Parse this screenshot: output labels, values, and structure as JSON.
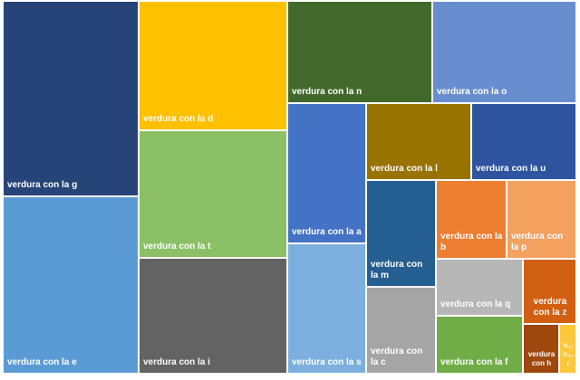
{
  "chart_data": {
    "type": "treemap",
    "title": "",
    "legend": "none",
    "items": [
      {
        "label": "verdura con la g",
        "value": 5.05,
        "color": "#264478"
      },
      {
        "label": "verdura con la e",
        "value": 3.55,
        "color": "#5b9bd5"
      },
      {
        "label": "verdura con la d",
        "value": 3.33,
        "color": "#ffc000"
      },
      {
        "label": "verdura con la t",
        "value": 3.16,
        "color": "#8cc066"
      },
      {
        "label": "verdura con la i",
        "value": 2.95,
        "color": "#636363"
      },
      {
        "label": "verdura con la n",
        "value": 2.2,
        "color": "#43682b"
      },
      {
        "label": "verdura con la o",
        "value": 2.12,
        "color": "#698ed0"
      },
      {
        "label": "verdura con la a",
        "value": 1.8,
        "color": "#4472c4"
      },
      {
        "label": "verdura con la s",
        "value": 1.64,
        "color": "#7cafdd"
      },
      {
        "label": "verdura con la l",
        "value": 1.23,
        "color": "#997300"
      },
      {
        "label": "verdura con la u",
        "value": 1.25,
        "color": "#2f549f"
      },
      {
        "label": "verdura con la m",
        "value": 0.98,
        "color": "#255e91"
      },
      {
        "label": "verdura con la c",
        "value": 0.8,
        "color": "#a5a5a5"
      },
      {
        "label": "verdura con la b",
        "value": 0.67,
        "color": "#ed7d31"
      },
      {
        "label": "verdura con la p",
        "value": 0.67,
        "color": "#f4a05f"
      },
      {
        "label": "verdura con la q",
        "value": 0.7,
        "color": "#b7b7b7"
      },
      {
        "label": "verdura con la f",
        "value": 0.59,
        "color": "#70ad47"
      },
      {
        "label": "verdura con la z",
        "value": 0.39,
        "color": "#d26012"
      },
      {
        "label": "verdura con h",
        "value": 0.28,
        "color": "#9e480e"
      },
      {
        "label": "v...c...r",
        "value": 0.09,
        "color": "#ffc73a"
      }
    ]
  }
}
